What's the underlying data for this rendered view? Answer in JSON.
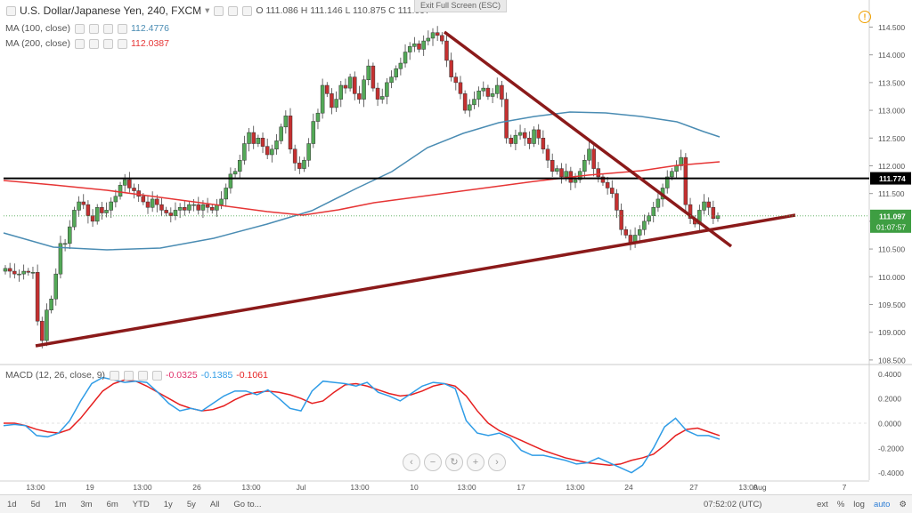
{
  "header": {
    "title": "U.S. Dollar/Japanese Yen, 240, FXCM",
    "ohlc_text": "O 111.086  H 111.146  L 110.875  C 111.097",
    "exit_fullscreen": "Exit Full Screen (ESC)",
    "ma100_label": "MA (100, close)",
    "ma100_value": "112.4776",
    "ma200_label": "MA (200, close)",
    "ma200_value": "112.0387",
    "macd_label": "MACD (12, 26, close, 9)",
    "macd_values": [
      "-0.0325",
      "-0.1385",
      "-0.1061"
    ]
  },
  "colors": {
    "up_candle": "#53a957",
    "down_candle": "#c53030",
    "ma100": "#4a8cb3",
    "ma200": "#e63535",
    "trendline": "#8b1a1a",
    "support": "#000000",
    "macd_line": "#2f9ce6",
    "signal_line": "#e62020"
  },
  "price_axis": {
    "ticks": [
      "114.500",
      "114.000",
      "113.500",
      "113.000",
      "112.500",
      "112.000",
      "111.500",
      "111.000",
      "110.500",
      "110.000",
      "109.500",
      "109.000",
      "108.500"
    ],
    "labels": [
      {
        "text": "111.774",
        "style": "black"
      },
      {
        "text": "111.097",
        "style": "green"
      },
      {
        "text": "01:07:57",
        "style": "green"
      }
    ]
  },
  "macd_axis": {
    "ticks": [
      "0.4000",
      "0.2000",
      "0.0000",
      "-0.2000",
      "-0.4000"
    ]
  },
  "time_axis": {
    "ticks": [
      "13:00",
      "19",
      "13:00",
      "26",
      "13:00",
      "Jul",
      "13:00",
      "10",
      "13:00",
      "17",
      "13:00",
      "24",
      "27",
      "13:00",
      "Aug",
      "7"
    ]
  },
  "bottombar": {
    "timeframes": [
      "1d",
      "5d",
      "1m",
      "3m",
      "6m",
      "YTD",
      "1y",
      "5y",
      "All",
      "Go to..."
    ],
    "time": "07:52:02 (UTC)",
    "right_items": [
      "ext",
      "%",
      "log",
      "auto"
    ]
  },
  "chart_data": [
    {
      "type": "candlestick",
      "title": "U.S. Dollar/Japanese Yen, 240, FXCM",
      "ylim": [
        108.45,
        114.7
      ],
      "close_series": [
        110.15,
        110.1,
        110.05,
        110.05,
        110.1,
        110.08,
        110.08,
        109.2,
        108.85,
        109.4,
        109.6,
        110.05,
        110.6,
        110.6,
        110.9,
        111.2,
        111.35,
        111.3,
        111.1,
        111.0,
        111.25,
        111.15,
        111.2,
        111.35,
        111.45,
        111.65,
        111.75,
        111.6,
        111.55,
        111.45,
        111.35,
        111.25,
        111.4,
        111.3,
        111.2,
        111.15,
        111.1,
        111.2,
        111.25,
        111.2,
        111.3,
        111.3,
        111.2,
        111.3,
        111.25,
        111.2,
        111.3,
        111.4,
        111.6,
        111.85,
        111.9,
        112.1,
        112.4,
        112.6,
        112.4,
        112.5,
        112.35,
        112.2,
        112.3,
        112.45,
        112.7,
        112.9,
        112.3,
        112.05,
        111.95,
        112.1,
        112.4,
        112.8,
        112.95,
        113.45,
        113.3,
        113.05,
        113.2,
        113.45,
        113.4,
        113.6,
        113.3,
        113.2,
        113.55,
        113.8,
        113.4,
        113.2,
        113.25,
        113.5,
        113.6,
        113.75,
        113.85,
        114.05,
        114.15,
        114.2,
        114.1,
        114.25,
        114.3,
        114.4,
        114.35,
        114.25,
        113.9,
        113.6,
        113.5,
        113.3,
        113.0,
        113.1,
        113.2,
        113.35,
        113.4,
        113.25,
        113.3,
        113.45,
        113.2,
        112.5,
        112.4,
        112.55,
        112.6,
        112.5,
        112.4,
        112.65,
        112.5,
        112.3,
        112.1,
        111.9,
        111.95,
        111.8,
        111.9,
        111.7,
        111.75,
        111.9,
        112.1,
        112.3,
        111.95,
        111.8,
        111.7,
        111.6,
        111.5,
        111.2,
        110.85,
        110.75,
        110.6,
        110.75,
        110.85,
        111.0,
        111.1,
        111.25,
        111.4,
        111.6,
        111.8,
        111.9,
        112.0,
        112.15,
        111.3,
        111.05,
        110.95,
        111.2,
        111.35,
        111.25,
        111.05,
        111.1
      ]
    },
    {
      "type": "line",
      "name": "MACD (12, 26, close, 9)",
      "ylim": [
        -0.46,
        0.46
      ],
      "series": [
        {
          "name": "MACD",
          "values": [
            -0.02,
            -0.01,
            -0.02,
            -0.1,
            -0.11,
            -0.08,
            0.02,
            0.18,
            0.32,
            0.37,
            0.35,
            0.33,
            0.34,
            0.33,
            0.25,
            0.16,
            0.1,
            0.12,
            0.1,
            0.16,
            0.22,
            0.26,
            0.26,
            0.23,
            0.27,
            0.2,
            0.12,
            0.1,
            0.26,
            0.34,
            0.33,
            0.32,
            0.3,
            0.33,
            0.25,
            0.22,
            0.18,
            0.24,
            0.3,
            0.33,
            0.32,
            0.28,
            0.02,
            -0.08,
            -0.1,
            -0.08,
            -0.12,
            -0.22,
            -0.26,
            -0.26,
            -0.28,
            -0.3,
            -0.33,
            -0.32,
            -0.28,
            -0.32,
            -0.36,
            -0.4,
            -0.34,
            -0.2,
            -0.03,
            0.04,
            -0.06,
            -0.1,
            -0.1,
            -0.13
          ]
        },
        {
          "name": "Signal",
          "values": [
            0.0,
            0.0,
            -0.02,
            -0.05,
            -0.07,
            -0.08,
            -0.05,
            0.04,
            0.15,
            0.26,
            0.32,
            0.35,
            0.34,
            0.3,
            0.25,
            0.2,
            0.15,
            0.12,
            0.1,
            0.11,
            0.14,
            0.19,
            0.23,
            0.25,
            0.26,
            0.25,
            0.23,
            0.2,
            0.16,
            0.18,
            0.25,
            0.31,
            0.32,
            0.3,
            0.27,
            0.24,
            0.22,
            0.23,
            0.26,
            0.3,
            0.32,
            0.3,
            0.22,
            0.1,
            0.0,
            -0.06,
            -0.1,
            -0.14,
            -0.18,
            -0.22,
            -0.25,
            -0.28,
            -0.3,
            -0.32,
            -0.33,
            -0.34,
            -0.33,
            -0.3,
            -0.28,
            -0.25,
            -0.18,
            -0.1,
            -0.05,
            -0.04,
            -0.07,
            -0.1
          ]
        }
      ]
    }
  ]
}
